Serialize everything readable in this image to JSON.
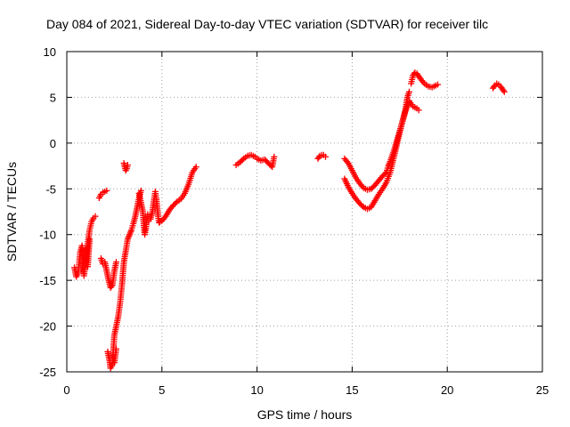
{
  "chart_data": {
    "type": "scatter",
    "title": "Day 084 of 2021, Sidereal Day-to-day VTEC variation (SDTVAR) for receiver tilc",
    "xlabel": "GPS time / hours",
    "ylabel": "SDTVAR / TECUs",
    "xlim": [
      0,
      25
    ],
    "ylim": [
      -25,
      10
    ],
    "xticks": [
      0,
      5,
      10,
      15,
      20,
      25
    ],
    "yticks": [
      -25,
      -20,
      -15,
      -10,
      -5,
      0,
      5,
      10
    ],
    "grid": true,
    "marker": "plus",
    "color": "#ff0000",
    "series": [
      {
        "segments": [
          [
            [
              0.4,
              -13.6
            ],
            [
              0.5,
              -14.6
            ],
            [
              0.6,
              -14.2
            ],
            [
              0.7,
              -12.0
            ],
            [
              0.8,
              -11.2
            ],
            [
              0.9,
              -14.5
            ],
            [
              1.0,
              -13.0
            ],
            [
              1.1,
              -11.0
            ],
            [
              1.2,
              -9.5
            ],
            [
              1.3,
              -8.6
            ],
            [
              1.4,
              -8.2
            ],
            [
              1.5,
              -8.0
            ]
          ],
          [
            [
              0.8,
              -14.0
            ],
            [
              0.9,
              -12.5
            ],
            [
              1.0,
              -11.5
            ],
            [
              1.1,
              -13.5
            ],
            [
              1.2,
              -10.5
            ]
          ],
          [
            [
              1.7,
              -6.0
            ],
            [
              1.8,
              -5.6
            ],
            [
              1.9,
              -5.4
            ],
            [
              2.0,
              -5.3
            ],
            [
              2.1,
              -5.2
            ]
          ],
          [
            [
              1.8,
              -12.6
            ],
            [
              1.9,
              -13.2
            ],
            [
              2.0,
              -13.0
            ],
            [
              2.1,
              -14.0
            ],
            [
              2.2,
              -15.0
            ],
            [
              2.3,
              -15.8
            ],
            [
              2.4,
              -15.5
            ],
            [
              2.5,
              -14.0
            ],
            [
              2.6,
              -13.0
            ]
          ],
          [
            [
              2.15,
              -22.8
            ],
            [
              2.25,
              -23.8
            ],
            [
              2.3,
              -24.6
            ],
            [
              2.4,
              -24.2
            ],
            [
              2.45,
              -22.5
            ],
            [
              2.5,
              -21.0
            ],
            [
              2.6,
              -20.0
            ],
            [
              2.7,
              -19.0
            ],
            [
              2.8,
              -17.5
            ],
            [
              2.9,
              -15.5
            ],
            [
              3.0,
              -13.0
            ],
            [
              3.1,
              -11.8
            ],
            [
              3.2,
              -10.5
            ],
            [
              3.3,
              -10.0
            ],
            [
              3.4,
              -9.5
            ],
            [
              3.5,
              -8.8
            ],
            [
              3.6,
              -8.0
            ],
            [
              3.7,
              -7.0
            ],
            [
              3.8,
              -6.0
            ],
            [
              3.9,
              -5.2
            ]
          ],
          [
            [
              2.4,
              -23.2
            ],
            [
              2.5,
              -24.0
            ],
            [
              2.6,
              -22.5
            ]
          ],
          [
            [
              3.0,
              -2.2
            ],
            [
              3.05,
              -2.6
            ],
            [
              3.1,
              -3.0
            ],
            [
              3.15,
              -2.8
            ],
            [
              3.2,
              -2.4
            ]
          ],
          [
            [
              3.8,
              -5.5
            ],
            [
              3.9,
              -6.5
            ],
            [
              4.0,
              -7.5
            ],
            [
              4.05,
              -9.0
            ],
            [
              4.1,
              -10.0
            ],
            [
              4.15,
              -9.5
            ],
            [
              4.2,
              -8.5
            ],
            [
              4.25,
              -7.8
            ]
          ],
          [
            [
              4.3,
              -8.5
            ],
            [
              4.4,
              -8.3
            ],
            [
              4.5,
              -7.5
            ],
            [
              4.6,
              -6.0
            ],
            [
              4.65,
              -5.3
            ],
            [
              4.7,
              -6.0
            ],
            [
              4.75,
              -7.0
            ],
            [
              4.8,
              -8.0
            ],
            [
              4.85,
              -8.7
            ],
            [
              4.9,
              -8.6
            ]
          ],
          [
            [
              5.0,
              -8.5
            ],
            [
              5.2,
              -8.0
            ],
            [
              5.4,
              -7.3
            ],
            [
              5.6,
              -6.8
            ],
            [
              5.8,
              -6.4
            ],
            [
              6.0,
              -6.1
            ],
            [
              6.2,
              -5.5
            ],
            [
              6.4,
              -4.5
            ],
            [
              6.6,
              -3.2
            ],
            [
              6.8,
              -2.6
            ]
          ],
          [
            [
              8.9,
              -2.4
            ],
            [
              9.1,
              -2.1
            ],
            [
              9.3,
              -1.7
            ],
            [
              9.5,
              -1.4
            ],
            [
              9.7,
              -1.3
            ],
            [
              9.9,
              -1.5
            ]
          ],
          [
            [
              10.0,
              -1.7
            ],
            [
              10.2,
              -1.9
            ],
            [
              10.4,
              -1.8
            ],
            [
              10.6,
              -2.2
            ],
            [
              10.8,
              -2.6
            ],
            [
              10.9,
              -1.5
            ]
          ],
          [
            [
              13.2,
              -1.7
            ],
            [
              13.3,
              -1.4
            ],
            [
              13.4,
              -1.3
            ],
            [
              13.5,
              -1.3
            ],
            [
              13.6,
              -1.5
            ]
          ],
          [
            [
              14.6,
              -1.7
            ],
            [
              14.8,
              -2.2
            ],
            [
              15.0,
              -3.0
            ],
            [
              15.2,
              -3.8
            ],
            [
              15.4,
              -4.4
            ],
            [
              15.6,
              -4.9
            ],
            [
              15.8,
              -5.1
            ],
            [
              16.0,
              -5.0
            ],
            [
              16.2,
              -4.6
            ],
            [
              16.4,
              -4.1
            ],
            [
              16.6,
              -3.6
            ],
            [
              16.8,
              -3.2
            ],
            [
              16.9,
              -2.5
            ],
            [
              17.0,
              -2.0
            ],
            [
              17.2,
              -0.8
            ],
            [
              17.4,
              0.6
            ],
            [
              17.6,
              2.0
            ],
            [
              17.8,
              3.6
            ],
            [
              17.9,
              5.0
            ],
            [
              18.0,
              5.6
            ]
          ],
          [
            [
              14.6,
              -3.9
            ],
            [
              14.8,
              -4.8
            ],
            [
              15.0,
              -5.5
            ],
            [
              15.2,
              -6.1
            ],
            [
              15.4,
              -6.6
            ],
            [
              15.6,
              -7.0
            ],
            [
              15.8,
              -7.2
            ],
            [
              16.0,
              -7.0
            ],
            [
              16.2,
              -6.3
            ],
            [
              16.4,
              -5.6
            ],
            [
              16.6,
              -5.0
            ],
            [
              16.8,
              -4.3
            ],
            [
              17.0,
              -3.2
            ],
            [
              17.2,
              -1.5
            ],
            [
              17.4,
              0.3
            ],
            [
              17.6,
              2.0
            ],
            [
              17.8,
              3.5
            ],
            [
              18.0,
              4.5
            ]
          ],
          [
            [
              18.0,
              4.6
            ],
            [
              18.2,
              4.0
            ],
            [
              18.4,
              3.8
            ],
            [
              18.5,
              3.6
            ]
          ],
          [
            [
              18.1,
              6.5
            ],
            [
              18.2,
              7.4
            ],
            [
              18.3,
              7.7
            ],
            [
              18.4,
              7.6
            ],
            [
              18.5,
              7.3
            ],
            [
              18.6,
              7.0
            ],
            [
              18.8,
              6.5
            ],
            [
              19.0,
              6.2
            ],
            [
              19.2,
              6.1
            ],
            [
              19.4,
              6.3
            ],
            [
              19.5,
              6.4
            ]
          ],
          [
            [
              22.4,
              6.0
            ],
            [
              22.5,
              6.3
            ],
            [
              22.6,
              6.5
            ],
            [
              22.7,
              6.4
            ],
            [
              22.8,
              6.2
            ],
            [
              22.9,
              5.9
            ],
            [
              23.0,
              5.6
            ]
          ]
        ]
      }
    ]
  }
}
